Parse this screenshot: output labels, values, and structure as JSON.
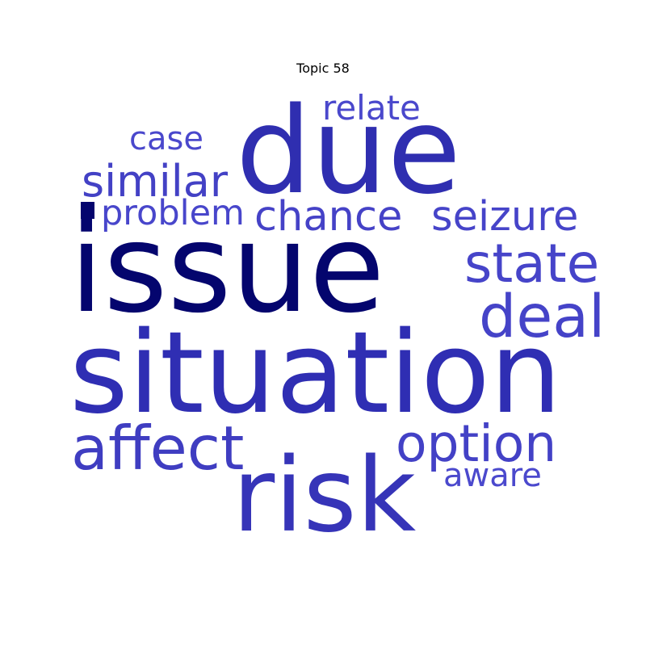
{
  "title": "Topic 58",
  "words": [
    {
      "key": "issue",
      "text": "issue",
      "color": "#04056e"
    },
    {
      "key": "situation",
      "text": "situation",
      "color": "#2f2eb3"
    },
    {
      "key": "due",
      "text": "due",
      "color": "#2f2eb0"
    },
    {
      "key": "risk",
      "text": "risk",
      "color": "#3634b8"
    },
    {
      "key": "affect",
      "text": "affect",
      "color": "#3f3dc1"
    },
    {
      "key": "option",
      "text": "option",
      "color": "#4341c6"
    },
    {
      "key": "deal",
      "text": "deal",
      "color": "#4543c8"
    },
    {
      "key": "state",
      "text": "state",
      "color": "#4644c9"
    },
    {
      "key": "chance",
      "text": "chance",
      "color": "#4542c7"
    },
    {
      "key": "seizure",
      "text": "seizure",
      "color": "#4644c9"
    },
    {
      "key": "similar",
      "text": "similar",
      "color": "#4341c5"
    },
    {
      "key": "problem",
      "text": "problem",
      "color": "#4846cb"
    },
    {
      "key": "relate",
      "text": "relate",
      "color": "#4a48cc"
    },
    {
      "key": "case",
      "text": "case",
      "color": "#4a48cc"
    },
    {
      "key": "aware",
      "text": "aware",
      "color": "#4b49cd"
    }
  ],
  "mark_color": "#04056e"
}
